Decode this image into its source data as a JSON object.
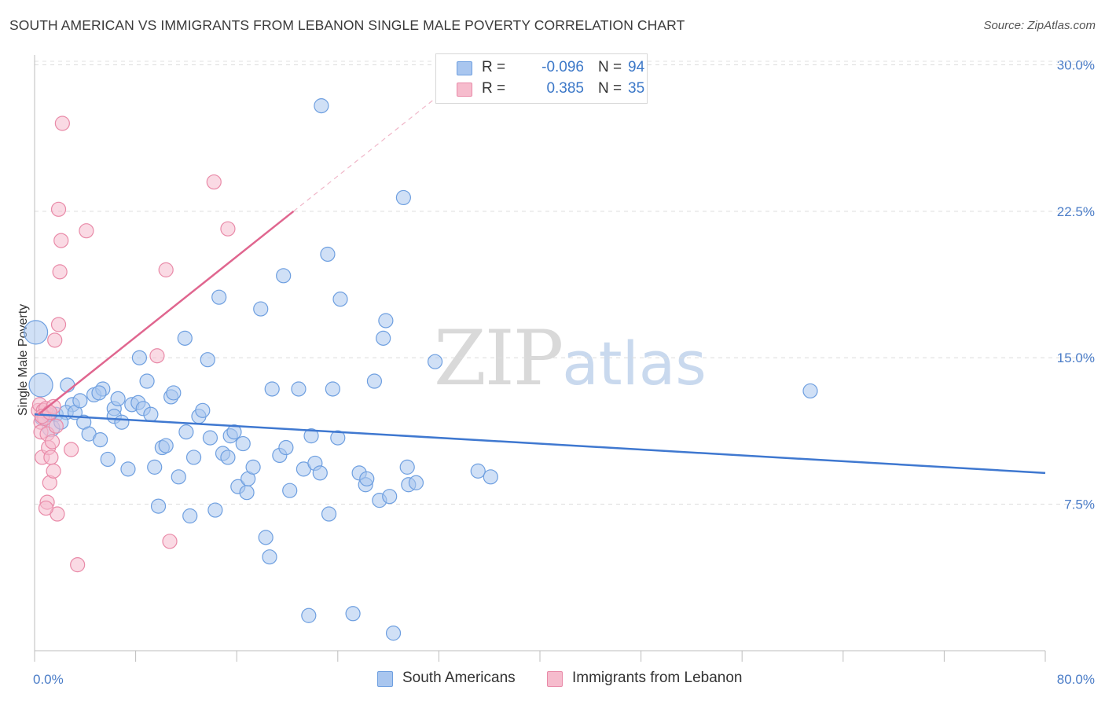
{
  "title": "SOUTH AMERICAN VS IMMIGRANTS FROM LEBANON SINGLE MALE POVERTY CORRELATION CHART",
  "source": "Source: ZipAtlas.com",
  "watermark": {
    "zip": "ZIP",
    "atlas": "atlas"
  },
  "stats": [
    {
      "r_label": "R =",
      "r_value": "-0.096",
      "n_label": "N =",
      "n_value": "94",
      "color": "#a9c6ef",
      "border": "#6e9fe0"
    },
    {
      "r_label": "R =",
      "r_value": "0.385",
      "n_label": "N =",
      "n_value": "35",
      "color": "#f6bccd",
      "border": "#e98aa8"
    }
  ],
  "legend": [
    {
      "label": "South Americans",
      "color": "#a9c6ef",
      "border": "#6e9fe0"
    },
    {
      "label": "Immigrants from Lebanon",
      "color": "#f6bccd",
      "border": "#e98aa8"
    }
  ],
  "chart_data": {
    "type": "scatter",
    "ylabel": "Single Male Poverty",
    "xlim": [
      0,
      80
    ],
    "ylim": [
      0,
      30.5
    ],
    "x_tick_labels": [
      {
        "value": 0,
        "label": "0.0%"
      },
      {
        "value": 80,
        "label": "80.0%"
      }
    ],
    "y_tick_labels": [
      {
        "value": 7.5,
        "label": "7.5%"
      },
      {
        "value": 15,
        "label": "15.0%"
      },
      {
        "value": 22.5,
        "label": "22.5%"
      },
      {
        "value": 30,
        "label": "30.0%"
      }
    ],
    "grid": true,
    "series": [
      {
        "name": "South Americans",
        "color": "#a9c6ef",
        "stroke": "#6e9fe0",
        "trend": {
          "x": [
            0,
            80
          ],
          "y": [
            12.1,
            9.1
          ],
          "color": "#3f78d0",
          "style": "solid"
        },
        "points": [
          [
            0.1,
            16.3
          ],
          [
            0.5,
            13.6
          ],
          [
            0.6,
            11.9
          ],
          [
            1.3,
            11.4
          ],
          [
            1.1,
            12.1
          ],
          [
            1.7,
            12.1
          ],
          [
            2.6,
            13.6
          ],
          [
            3.0,
            12.6
          ],
          [
            2.5,
            12.2
          ],
          [
            3.2,
            12.2
          ],
          [
            2.1,
            11.7
          ],
          [
            3.6,
            12.8
          ],
          [
            3.9,
            11.7
          ],
          [
            4.3,
            11.1
          ],
          [
            4.7,
            13.1
          ],
          [
            5.4,
            13.4
          ],
          [
            5.1,
            13.2
          ],
          [
            5.2,
            10.8
          ],
          [
            5.8,
            9.8
          ],
          [
            6.3,
            12.4
          ],
          [
            6.3,
            12.0
          ],
          [
            6.6,
            12.9
          ],
          [
            6.9,
            11.7
          ],
          [
            7.4,
            9.3
          ],
          [
            7.7,
            12.6
          ],
          [
            8.2,
            12.7
          ],
          [
            8.3,
            15.0
          ],
          [
            8.6,
            12.4
          ],
          [
            8.9,
            13.8
          ],
          [
            9.2,
            12.1
          ],
          [
            9.5,
            9.4
          ],
          [
            9.8,
            7.4
          ],
          [
            10.1,
            10.4
          ],
          [
            10.4,
            10.5
          ],
          [
            10.8,
            13.0
          ],
          [
            11.0,
            13.2
          ],
          [
            11.4,
            8.9
          ],
          [
            11.9,
            16.0
          ],
          [
            12.0,
            11.2
          ],
          [
            12.3,
            6.9
          ],
          [
            12.6,
            9.9
          ],
          [
            13.0,
            12.0
          ],
          [
            13.3,
            12.3
          ],
          [
            13.7,
            14.9
          ],
          [
            13.9,
            10.9
          ],
          [
            14.3,
            7.2
          ],
          [
            14.6,
            18.1
          ],
          [
            14.9,
            10.1
          ],
          [
            15.3,
            9.9
          ],
          [
            15.5,
            11.0
          ],
          [
            15.8,
            11.2
          ],
          [
            16.1,
            8.4
          ],
          [
            16.5,
            10.6
          ],
          [
            16.8,
            8.1
          ],
          [
            16.9,
            8.8
          ],
          [
            17.3,
            9.4
          ],
          [
            17.9,
            17.5
          ],
          [
            18.3,
            5.8
          ],
          [
            18.6,
            4.8
          ],
          [
            18.8,
            13.4
          ],
          [
            19.4,
            10.0
          ],
          [
            19.7,
            19.2
          ],
          [
            19.9,
            10.4
          ],
          [
            20.2,
            8.2
          ],
          [
            20.9,
            13.4
          ],
          [
            21.3,
            9.3
          ],
          [
            21.7,
            1.8
          ],
          [
            21.9,
            11.0
          ],
          [
            22.2,
            9.6
          ],
          [
            22.6,
            9.1
          ],
          [
            22.7,
            27.9
          ],
          [
            23.2,
            20.3
          ],
          [
            23.3,
            7.0
          ],
          [
            23.6,
            13.4
          ],
          [
            24.0,
            10.9
          ],
          [
            24.2,
            18.0
          ],
          [
            25.2,
            1.9
          ],
          [
            25.7,
            9.1
          ],
          [
            26.2,
            8.5
          ],
          [
            26.3,
            8.8
          ],
          [
            26.9,
            13.8
          ],
          [
            27.3,
            7.7
          ],
          [
            27.6,
            16.0
          ],
          [
            27.8,
            16.9
          ],
          [
            28.1,
            7.9
          ],
          [
            28.4,
            0.9
          ],
          [
            29.2,
            23.2
          ],
          [
            29.5,
            9.4
          ],
          [
            29.6,
            8.5
          ],
          [
            30.2,
            8.6
          ],
          [
            31.7,
            14.8
          ],
          [
            35.1,
            9.2
          ],
          [
            36.1,
            8.9
          ],
          [
            61.4,
            13.3
          ]
        ]
      },
      {
        "name": "Immigrants from Lebanon",
        "color": "#f6bccd",
        "stroke": "#e98aa8",
        "trend": {
          "x": [
            0.3,
            20.5
          ],
          "y": [
            12.1,
            22.5
          ],
          "color": "#e0668f",
          "style": "solid",
          "extend_x": [
            20.5,
            33.5
          ],
          "extend_y": [
            22.5,
            29.2
          ]
        },
        "points": [
          [
            0.3,
            12.3
          ],
          [
            0.4,
            12.6
          ],
          [
            0.5,
            11.7
          ],
          [
            0.5,
            11.2
          ],
          [
            0.6,
            9.9
          ],
          [
            0.7,
            12.3
          ],
          [
            0.8,
            11.9
          ],
          [
            0.9,
            12.4
          ],
          [
            1.0,
            11.1
          ],
          [
            1.0,
            7.6
          ],
          [
            1.1,
            10.4
          ],
          [
            1.2,
            8.6
          ],
          [
            1.3,
            9.9
          ],
          [
            1.4,
            10.7
          ],
          [
            1.5,
            12.5
          ],
          [
            1.5,
            9.2
          ],
          [
            1.6,
            15.9
          ],
          [
            1.7,
            11.5
          ],
          [
            1.8,
            7.0
          ],
          [
            1.9,
            16.7
          ],
          [
            1.9,
            22.6
          ],
          [
            2.0,
            19.4
          ],
          [
            2.1,
            21.0
          ],
          [
            2.2,
            27.0
          ],
          [
            2.9,
            10.3
          ],
          [
            3.4,
            4.4
          ],
          [
            4.1,
            21.5
          ],
          [
            9.7,
            15.1
          ],
          [
            10.4,
            19.5
          ],
          [
            10.7,
            5.6
          ],
          [
            14.2,
            24.0
          ],
          [
            15.3,
            21.6
          ],
          [
            0.9,
            7.3
          ],
          [
            0.6,
            12.0
          ],
          [
            1.2,
            12.2
          ]
        ]
      }
    ]
  }
}
